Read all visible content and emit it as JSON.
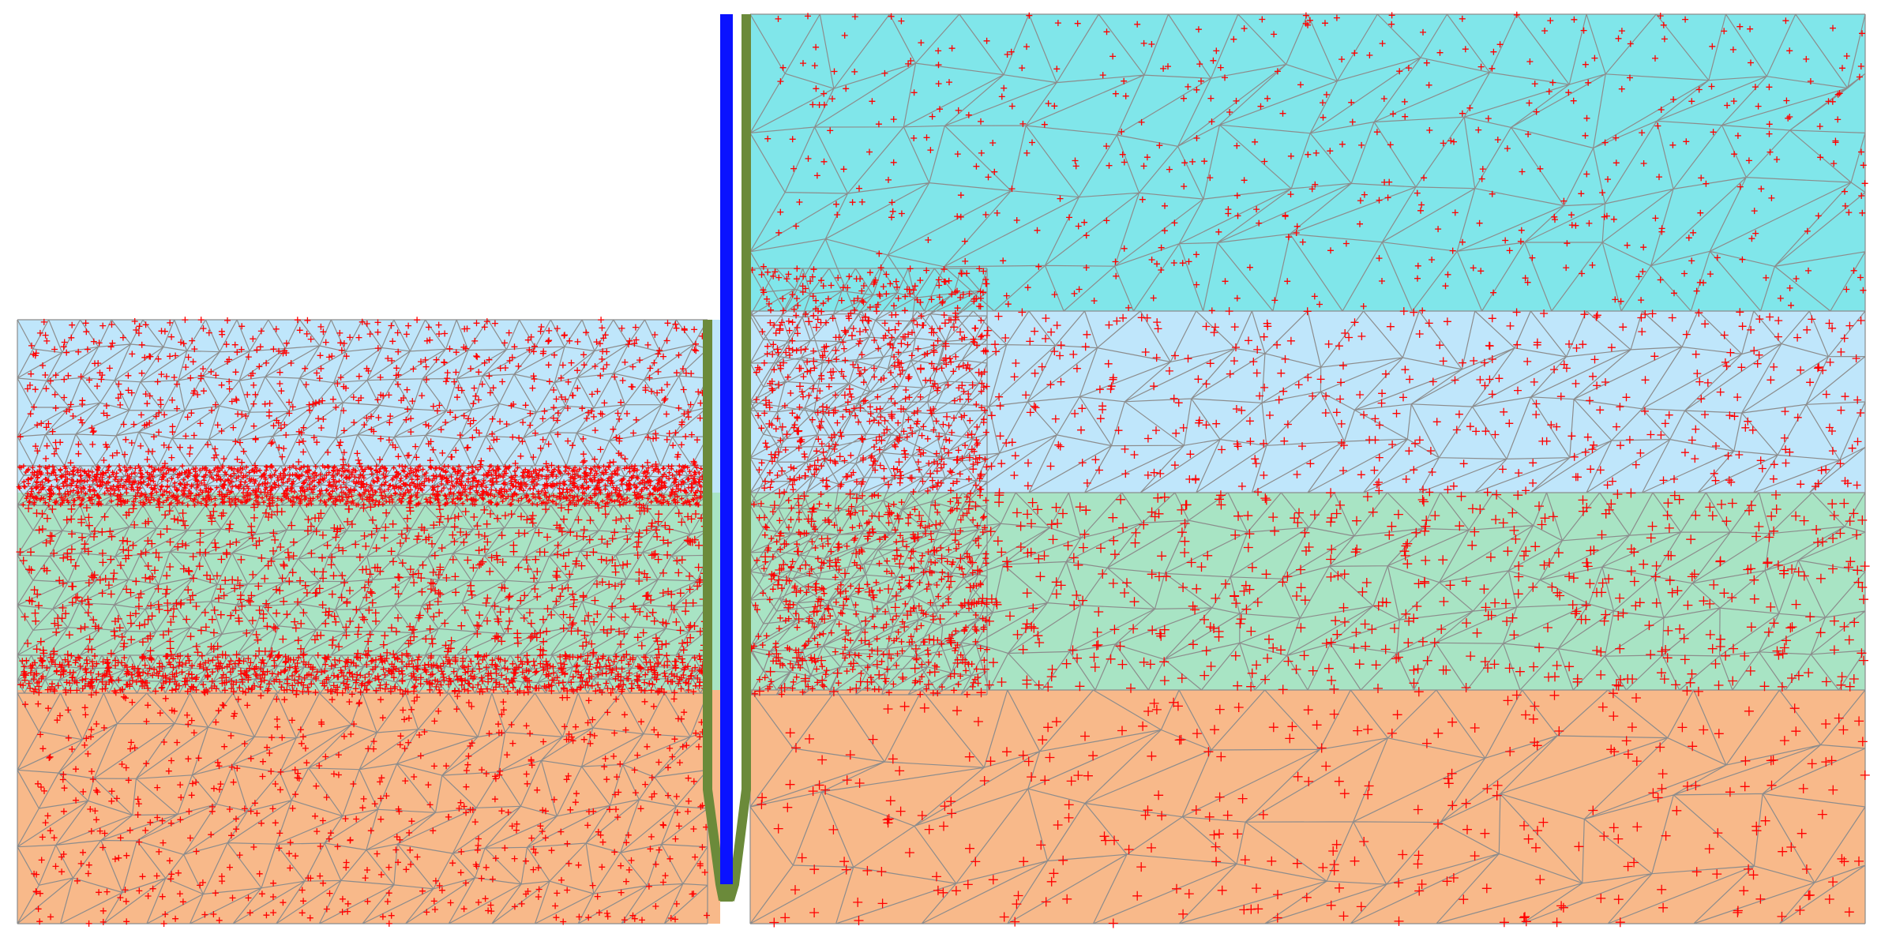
{
  "model": {
    "layers": [
      {
        "id": "layer-1",
        "color": "#80e6ea",
        "mesh": "coarse"
      },
      {
        "id": "layer-2",
        "color": "#bfe6fb",
        "mesh": "medium"
      },
      {
        "id": "layer-3",
        "color": "#a8e4c4",
        "mesh": "medium"
      },
      {
        "id": "layer-4",
        "color": "#f8b98a",
        "mesh": "coarse"
      }
    ],
    "mesh_line_color": "#8c8c8c",
    "stress_point_color": "#ff0000",
    "wall_color": "#0a12ff",
    "interface_color": "#6b8a3a"
  }
}
